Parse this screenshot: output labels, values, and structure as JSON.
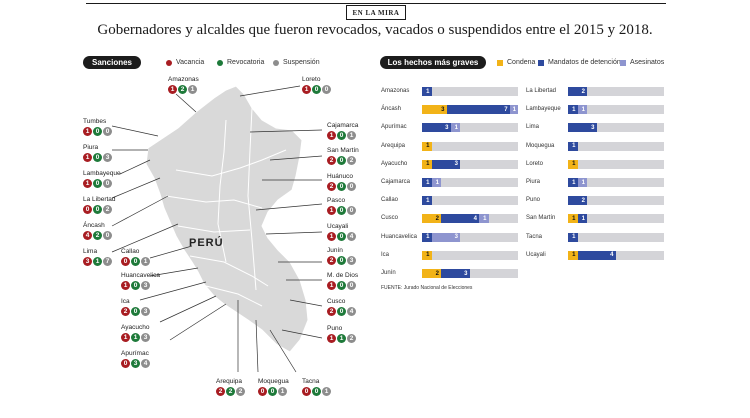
{
  "header": {
    "section_tag": "EN LA MIRA",
    "headline": "Gobernadores y alcaldes que fueron revocados, vacados o suspendidos entre el 2015 y 2018."
  },
  "sanciones": {
    "title": "Sanciones",
    "legend": [
      {
        "label": "Vacancia",
        "color": "#a81d22"
      },
      {
        "label": "Revocatoria",
        "color": "#1e7a3a"
      },
      {
        "label": "Suspensión",
        "color": "#8d8d8d"
      }
    ],
    "country_label": "PERÚ",
    "regions": [
      {
        "name": "Amazonas",
        "vacancia": "1",
        "revocatoria": "2",
        "suspension": "1"
      },
      {
        "name": "Loreto",
        "vacancia": "1",
        "revocatoria": "0",
        "suspension": "0"
      },
      {
        "name": "Tumbes",
        "vacancia": "1",
        "revocatoria": "0",
        "suspension": "0"
      },
      {
        "name": "Cajamarca",
        "vacancia": "1",
        "revocatoria": "0",
        "suspension": "1"
      },
      {
        "name": "Piura",
        "vacancia": "1",
        "revocatoria": "0",
        "suspension": "3"
      },
      {
        "name": "San Martín",
        "vacancia": "2",
        "revocatoria": "0",
        "suspension": "2"
      },
      {
        "name": "Lambayeque",
        "vacancia": "1",
        "revocatoria": "0",
        "suspension": "0"
      },
      {
        "name": "Huánuco",
        "vacancia": "2",
        "revocatoria": "0",
        "suspension": "0"
      },
      {
        "name": "La Libertad",
        "vacancia": "0",
        "revocatoria": "0",
        "suspension": "2"
      },
      {
        "name": "Pasco",
        "vacancia": "1",
        "revocatoria": "0",
        "suspension": "0"
      },
      {
        "name": "Áncash",
        "vacancia": "4",
        "revocatoria": "2",
        "suspension": "0"
      },
      {
        "name": "Ucayali",
        "vacancia": "1",
        "revocatoria": "0",
        "suspension": "4"
      },
      {
        "name": "Callao",
        "vacancia": "0",
        "revocatoria": "0",
        "suspension": "1"
      },
      {
        "name": "Lima",
        "vacancia": "3",
        "revocatoria": "1",
        "suspension": "7"
      },
      {
        "name": "Junín",
        "vacancia": "2",
        "revocatoria": "0",
        "suspension": "3"
      },
      {
        "name": "Huancavelica",
        "vacancia": "1",
        "revocatoria": "0",
        "suspension": "3"
      },
      {
        "name": "M. de Dios",
        "vacancia": "1",
        "revocatoria": "0",
        "suspension": "0"
      },
      {
        "name": "Ica",
        "vacancia": "2",
        "revocatoria": "0",
        "suspension": "3"
      },
      {
        "name": "Cusco",
        "vacancia": "2",
        "revocatoria": "0",
        "suspension": "4"
      },
      {
        "name": "Ayacucho",
        "vacancia": "1",
        "revocatoria": "1",
        "suspension": "3"
      },
      {
        "name": "Puno",
        "vacancia": "1",
        "revocatoria": "1",
        "suspension": "2"
      },
      {
        "name": "Apurímac",
        "vacancia": "0",
        "revocatoria": "3",
        "suspension": "4"
      },
      {
        "name": "Arequipa",
        "vacancia": "2",
        "revocatoria": "2",
        "suspension": "2"
      },
      {
        "name": "Moquegua",
        "vacancia": "0",
        "revocatoria": "0",
        "suspension": "1"
      },
      {
        "name": "Tacna",
        "vacancia": "0",
        "revocatoria": "0",
        "suspension": "1"
      }
    ]
  },
  "hechos": {
    "title": "Los hechos más graves",
    "legend": [
      {
        "label": "Condena",
        "color": "#f2b318"
      },
      {
        "label": "Mandatos de detención",
        "color": "#2e4a9e"
      },
      {
        "label": "Asesinatos",
        "color": "#8e95cf"
      }
    ],
    "source": "FUENTE: Jurado Nacional de Elecciones"
  },
  "chart_data": {
    "type": "bar",
    "title": "Los hechos más graves",
    "series_names": [
      "Condena",
      "Mandatos de detención",
      "Asesinatos"
    ],
    "rows": [
      {
        "region": "Amazonas",
        "condena": 0,
        "mandatos": 1,
        "asesinatos": 0
      },
      {
        "region": "Áncash",
        "condena": 3,
        "mandatos": 7,
        "asesinatos": 1
      },
      {
        "region": "Apurímac",
        "condena": 0,
        "mandatos": 3,
        "asesinatos": 1
      },
      {
        "region": "Arequipa",
        "condena": 1,
        "mandatos": 0,
        "asesinatos": 0
      },
      {
        "region": "Ayacucho",
        "condena": 1,
        "mandatos": 3,
        "asesinatos": 0
      },
      {
        "region": "Cajamarca",
        "condena": 0,
        "mandatos": 1,
        "asesinatos": 1
      },
      {
        "region": "Callao",
        "condena": 0,
        "mandatos": 1,
        "asesinatos": 0
      },
      {
        "region": "Cusco",
        "condena": 2,
        "mandatos": 4,
        "asesinatos": 1
      },
      {
        "region": "Huancavelica",
        "condena": 0,
        "mandatos": 1,
        "asesinatos": 3
      },
      {
        "region": "Ica",
        "condena": 1,
        "mandatos": 0,
        "asesinatos": 0
      },
      {
        "region": "Junín",
        "condena": 2,
        "mandatos": 3,
        "asesinatos": 0
      },
      {
        "region": "La Libertad",
        "condena": 0,
        "mandatos": 2,
        "asesinatos": 0
      },
      {
        "region": "Lambayeque",
        "condena": 0,
        "mandatos": 1,
        "asesinatos": 1
      },
      {
        "region": "Lima",
        "condena": 0,
        "mandatos": 3,
        "asesinatos": 0
      },
      {
        "region": "Moquegua",
        "condena": 0,
        "mandatos": 1,
        "asesinatos": 0
      },
      {
        "region": "Loreto",
        "condena": 1,
        "mandatos": 0,
        "asesinatos": 0
      },
      {
        "region": "Piura",
        "condena": 0,
        "mandatos": 1,
        "asesinatos": 1
      },
      {
        "region": "Puno",
        "condena": 0,
        "mandatos": 2,
        "asesinatos": 0
      },
      {
        "region": "San Martín",
        "condena": 1,
        "mandatos": 1,
        "asesinatos": 0
      },
      {
        "region": "Tacna",
        "condena": 0,
        "mandatos": 1,
        "asesinatos": 0
      },
      {
        "region": "Ucayali",
        "condena": 1,
        "mandatos": 4,
        "asesinatos": 0
      }
    ]
  }
}
